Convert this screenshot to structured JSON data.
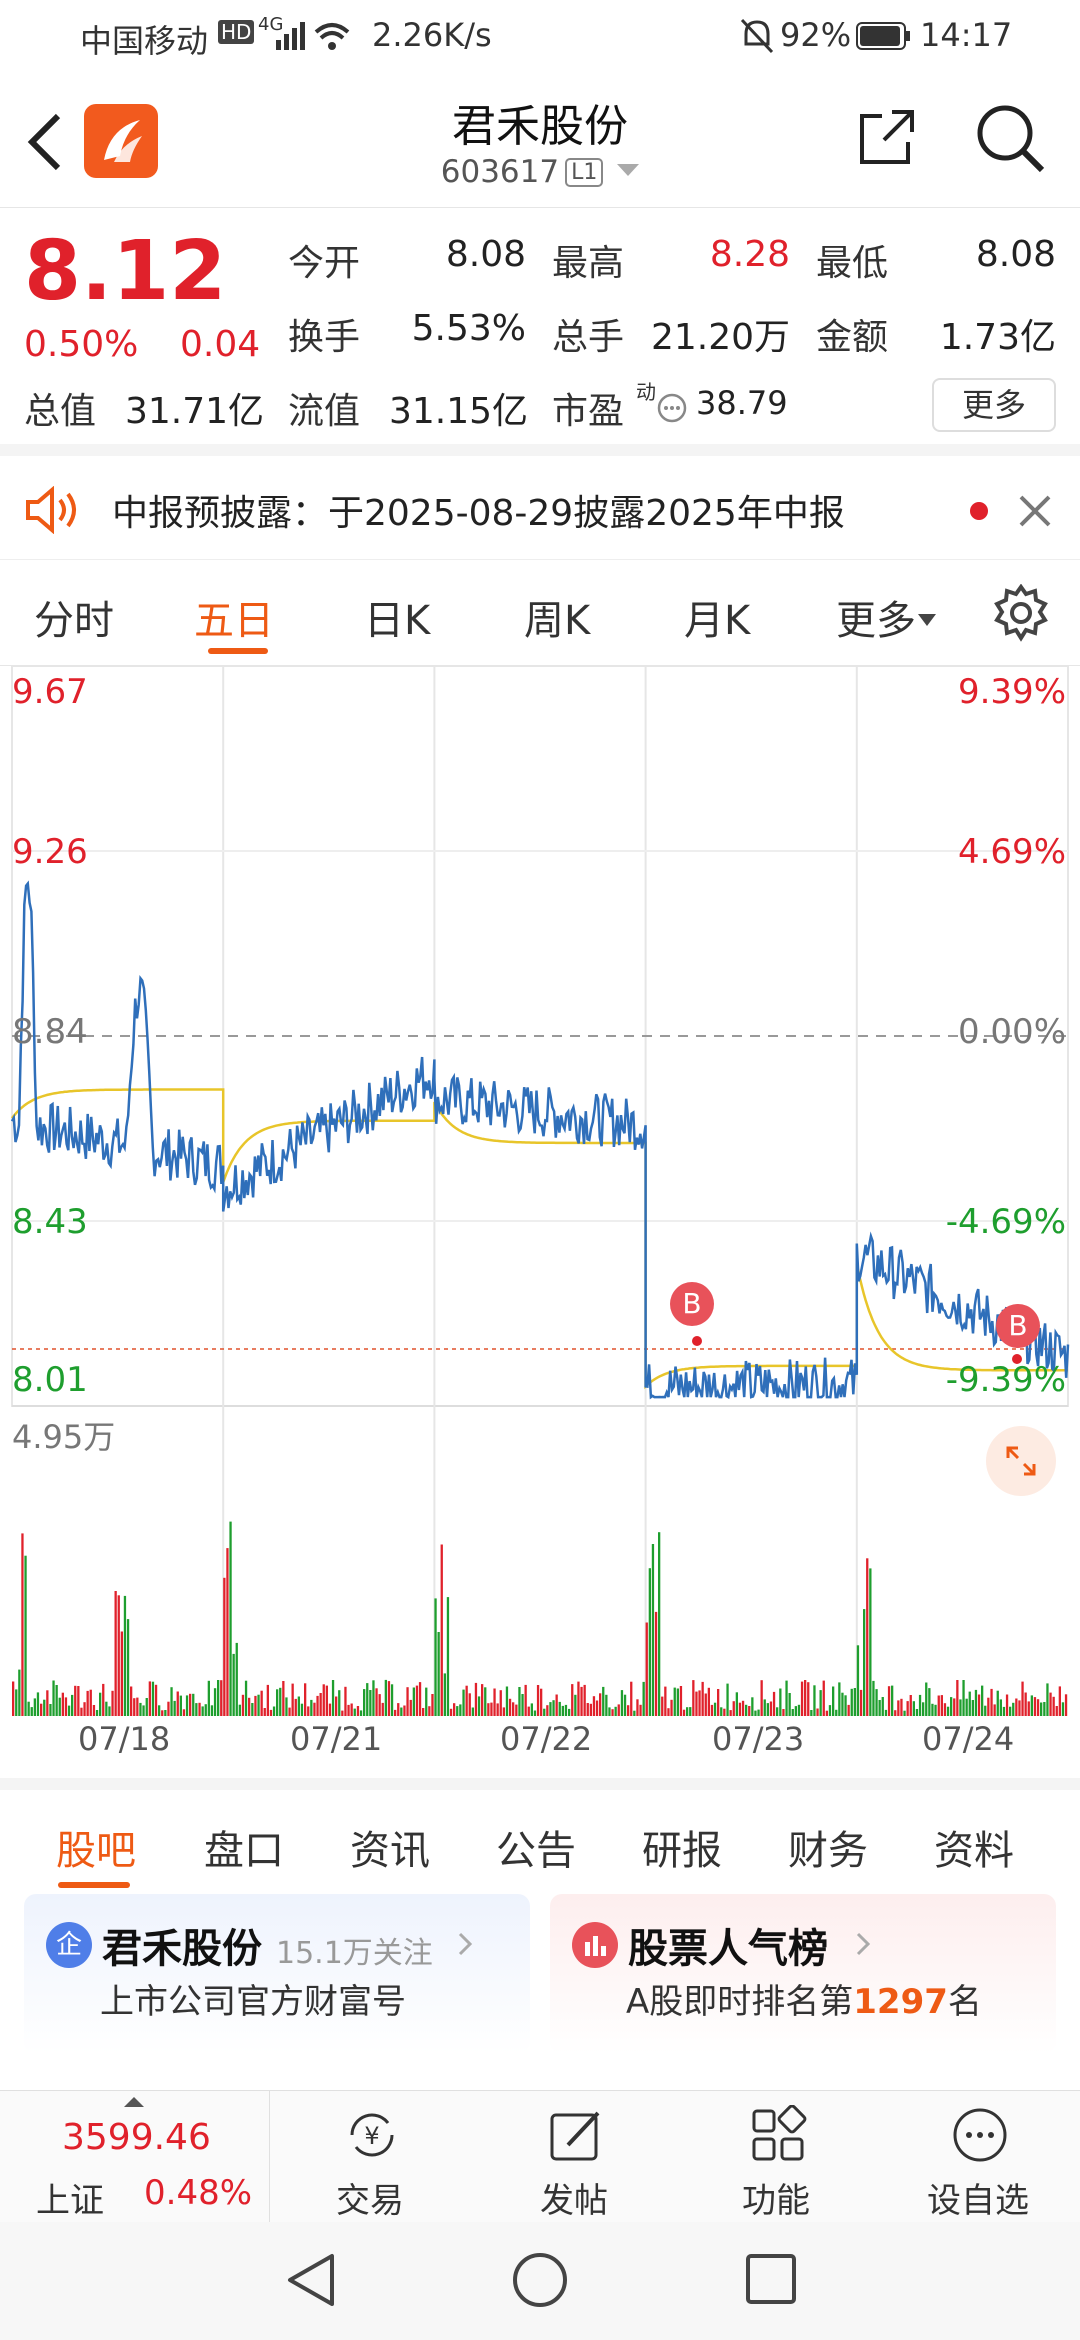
{
  "status_bar": {
    "carrier": "中国移动",
    "hd": "HD",
    "net": "4G",
    "speed": "2.26K/s",
    "battery": "92%",
    "time": "14:17"
  },
  "header": {
    "title": "君禾股份",
    "code": "603617",
    "level": "L1"
  },
  "quote": {
    "price": "8.12",
    "change_pct": "0.50%",
    "change": "0.04",
    "open_label": "今开",
    "open": "8.08",
    "high_label": "最高",
    "high": "8.28",
    "low_label": "最低",
    "low": "8.08",
    "turnover_label": "换手",
    "turnover": "5.53%",
    "volume_label": "总手",
    "volume": "21.20万",
    "amount_label": "金额",
    "amount": "1.73亿",
    "mktcap_label": "总值",
    "mktcap": "31.71亿",
    "float_label": "流值",
    "float_cap": "31.15亿",
    "pe_label": "市盈",
    "pe_sup": "动",
    "pe": "38.79",
    "more_label": "更多"
  },
  "notice": {
    "text": "中报预披露：于2025-08-29披露2025年中报"
  },
  "chart_tabs": [
    "分时",
    "五日",
    "日K",
    "周K",
    "月K",
    "更多"
  ],
  "chart": {
    "price_ticks": [
      "9.67",
      "9.26",
      "8.84",
      "8.43",
      "8.01"
    ],
    "pct_ticks": [
      "9.39%",
      "4.69%",
      "0.00%",
      "-4.69%",
      "-9.39%"
    ],
    "vol_max": "4.95万",
    "dates": [
      "07/18",
      "07/21",
      "07/22",
      "07/23",
      "07/24"
    ],
    "marker": "B"
  },
  "chart_data": {
    "type": "line",
    "x": [
      "07/18",
      "07/21",
      "07/22",
      "07/23",
      "07/24"
    ],
    "series": [
      {
        "values": [
          8.55,
          8.76,
          8.64,
          8.06,
          8.12
        ]
      },
      {
        "values": [
          8.72,
          8.65,
          8.6,
          8.1,
          8.09
        ]
      }
    ],
    "ylim": [
      8.01,
      9.67
    ]
  },
  "bottom_tabs": [
    "股吧",
    "盘口",
    "资讯",
    "公告",
    "研报",
    "财务",
    "资料"
  ],
  "cards": {
    "c1": {
      "icon": "企",
      "title": "君禾股份",
      "follow": "15.1万关注",
      "sub": "上市公司官方财富号"
    },
    "c2": {
      "title": "股票人气榜",
      "sub_prefix": "A股即时排名第",
      "rank": "1297",
      "sub_suffix": "名"
    }
  },
  "toolbar": {
    "index_value": "3599.46",
    "index_name": "上证",
    "index_pct": "0.48%",
    "items": [
      "交易",
      "发帖",
      "功能",
      "设自选"
    ]
  },
  "colors": {
    "up": "#e0212b",
    "down": "#1e9e2e",
    "accent": "#ee5a14",
    "line": "#2f6fba",
    "avg": "#e8c52a"
  }
}
